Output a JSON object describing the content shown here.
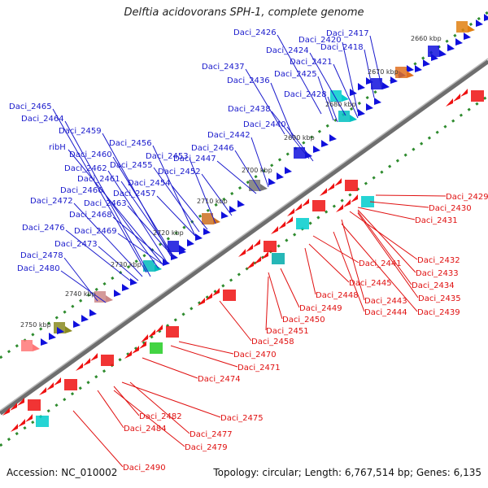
{
  "title": "Delftia acidovorans SPH-1, complete genome",
  "footer": {
    "accession": "Accession: NC_010002",
    "summary": "Topology: circular; Length: 6,767,514 bp; Genes: 6,135"
  },
  "colors": {
    "forward_label": "#1a1acc",
    "reverse_label": "#e01010",
    "tick": "#2e8b2e",
    "backbone": "#6e6e6e"
  },
  "scale_labels": [
    "2660 kbp",
    "2670 kbp",
    "2680 kbp",
    "2690 kbp",
    "2700 kbp",
    "2710 kbp",
    "2720 kbp",
    "2730 kbp",
    "2740 kbp",
    "2750 kbp"
  ],
  "forward_labels": [
    "Daci_2426",
    "Daci_2420",
    "Daci_2417",
    "Daci_2424",
    "Daci_2418",
    "Daci_2437",
    "Daci_2421",
    "Daci_2436",
    "Daci_2425",
    "Daci_2428",
    "Daci_2438",
    "Daci_2465",
    "Daci_2440",
    "Daci_2464",
    "Daci_2442",
    "Daci_2459",
    "Daci_2456",
    "Daci_2446",
    "ribH",
    "Daci_2460",
    "Daci_2453",
    "Daci_2447",
    "Daci_2462",
    "Daci_2455",
    "Daci_2452",
    "Daci_2461",
    "Daci_2454",
    "Daci_2466",
    "Daci_2457",
    "Daci_2472",
    "Daci_2463",
    "Daci_2468",
    "Daci_2476",
    "Daci_2469",
    "Daci_2473",
    "Daci_2478",
    "Daci_2480"
  ],
  "reverse_labels": [
    "Daci_2429",
    "Daci_2430",
    "Daci_2431",
    "Daci_2432",
    "Daci_2441",
    "Daci_2433",
    "Daci_2434",
    "Daci_2445",
    "Daci_2448",
    "Daci_2443",
    "Daci_2435",
    "Daci_2449",
    "Daci_2444",
    "Daci_2439",
    "Daci_2450",
    "Daci_2451",
    "Daci_2458",
    "Daci_2470",
    "Daci_2471",
    "Daci_2474",
    "Daci_2475",
    "Daci_2482",
    "Daci_2484",
    "Daci_2477",
    "Daci_2479",
    "Daci_2490"
  ]
}
